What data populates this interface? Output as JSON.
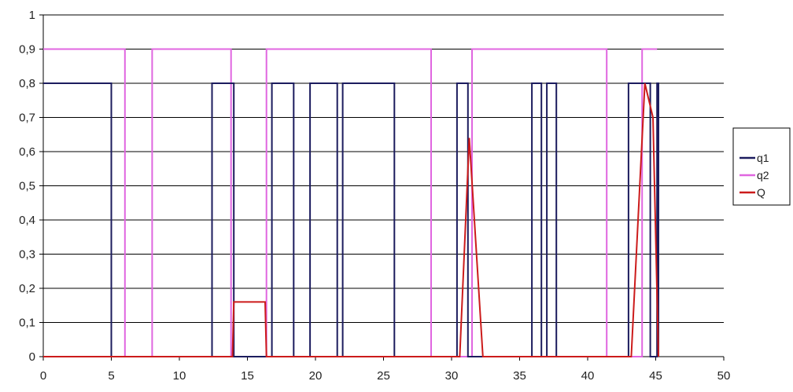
{
  "chart_data": {
    "type": "line",
    "title": "",
    "xlabel": "",
    "ylabel": "",
    "xlim": [
      0,
      50
    ],
    "ylim": [
      0,
      1
    ],
    "x_ticks": [
      "0",
      "5",
      "10",
      "15",
      "20",
      "25",
      "30",
      "35",
      "40",
      "45",
      "50"
    ],
    "y_ticks": [
      "0",
      "0,1",
      "0,2",
      "0,3",
      "0,4",
      "0,5",
      "0,6",
      "0,7",
      "0,8",
      "0,9",
      "1"
    ],
    "grid": "horizontal",
    "legend_position": "right",
    "series": [
      {
        "name": "q1",
        "color": "#1c1c5e",
        "points": [
          [
            0,
            0.8
          ],
          [
            5,
            0.8
          ],
          [
            5,
            0
          ],
          [
            12.4,
            0
          ],
          [
            12.4,
            0.8
          ],
          [
            14,
            0.8
          ],
          [
            14,
            0
          ],
          [
            16.8,
            0
          ],
          [
            16.8,
            0.8
          ],
          [
            18.4,
            0.8
          ],
          [
            18.4,
            0
          ],
          [
            19.6,
            0
          ],
          [
            19.6,
            0.8
          ],
          [
            21.6,
            0.8
          ],
          [
            21.6,
            0
          ],
          [
            22,
            0
          ],
          [
            22,
            0.8
          ],
          [
            25.8,
            0.8
          ],
          [
            25.8,
            0
          ],
          [
            30.4,
            0
          ],
          [
            30.4,
            0.8
          ],
          [
            31.2,
            0.8
          ],
          [
            31.2,
            0
          ],
          [
            35.9,
            0
          ],
          [
            35.9,
            0.8
          ],
          [
            36.6,
            0.8
          ],
          [
            36.6,
            0
          ],
          [
            37,
            0
          ],
          [
            37,
            0.8
          ],
          [
            37.7,
            0.8
          ],
          [
            37.7,
            0
          ],
          [
            43,
            0
          ],
          [
            43,
            0.8
          ],
          [
            44.6,
            0.8
          ],
          [
            44.6,
            0
          ],
          [
            45.1,
            0
          ],
          [
            45.1,
            0.8
          ],
          [
            45.2,
            0.8
          ],
          [
            45.2,
            0
          ]
        ]
      },
      {
        "name": "q2",
        "color": "#e066e0",
        "points": [
          [
            0,
            0.9
          ],
          [
            6,
            0.9
          ],
          [
            6,
            0
          ],
          [
            8,
            0
          ],
          [
            8,
            0.9
          ],
          [
            13.8,
            0.9
          ],
          [
            13.8,
            0
          ],
          [
            16.4,
            0
          ],
          [
            16.4,
            0.9
          ],
          [
            28.5,
            0.9
          ],
          [
            28.5,
            0
          ],
          [
            31.5,
            0
          ],
          [
            31.5,
            0.9
          ],
          [
            41.4,
            0.9
          ],
          [
            41.4,
            0
          ],
          [
            44,
            0
          ],
          [
            44,
            0.9
          ],
          [
            45.1,
            0.9
          ]
        ]
      },
      {
        "name": "Q",
        "color": "#cc1b1b",
        "points": [
          [
            0,
            0
          ],
          [
            13.9,
            0
          ],
          [
            14,
            0.16
          ],
          [
            16.3,
            0.16
          ],
          [
            16.4,
            0
          ],
          [
            30.6,
            0
          ],
          [
            31.3,
            0.64
          ],
          [
            32.3,
            0
          ],
          [
            43.2,
            0
          ],
          [
            44.2,
            0.8
          ],
          [
            44.8,
            0.7
          ],
          [
            45.2,
            0
          ]
        ]
      }
    ]
  }
}
